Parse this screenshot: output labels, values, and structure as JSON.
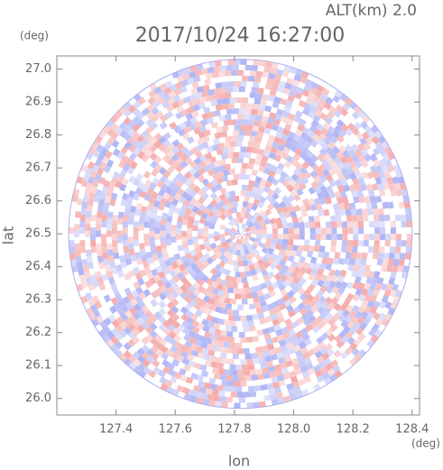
{
  "chart_data": {
    "type": "ppi",
    "title": "2017/10/24 16:27:00",
    "subtitle": "ALT(km) 2.0",
    "x_label": "lon",
    "y_label": "lat",
    "x_unit": "(deg)",
    "y_unit": "(deg)",
    "xlim": [
      127.2,
      128.425
    ],
    "ylim": [
      25.95,
      27.04
    ],
    "xticks": [
      127.4,
      127.6,
      127.8,
      {
        "value": 128,
        "label": "128.0"
      },
      128.2,
      128.4
    ],
    "yticks": [
      {
        "value": 26,
        "label": "26.0"
      },
      26.1,
      26.2,
      26.3,
      26.4,
      26.5,
      26.6,
      26.7,
      26.8,
      26.9,
      {
        "value": 27,
        "label": "27.0"
      }
    ],
    "center": [
      127.82,
      26.5
    ],
    "radius_lon": 0.58,
    "radius_lat": 0.53,
    "colors": [
      "#f4a6a6",
      "#aab0f4"
    ]
  }
}
